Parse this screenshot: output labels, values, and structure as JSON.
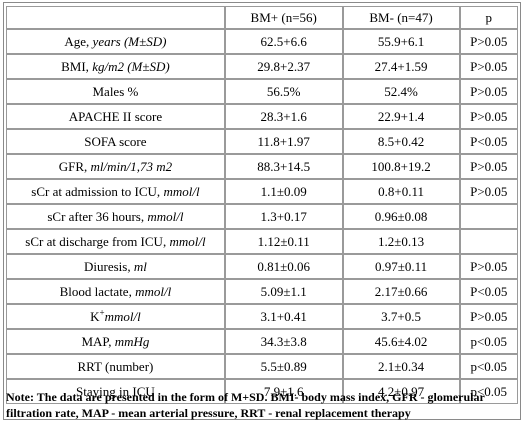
{
  "table": {
    "headers": [
      "",
      "BM+ (n=56)",
      "BM- (n=47)",
      "p"
    ],
    "rows": [
      {
        "label": "Age, ",
        "unit": "years (M±SD)",
        "bm_plus": "62.5+6.6",
        "bm_minus": "55.9+6.1",
        "p": "P>0.05"
      },
      {
        "label": "BMI, ",
        "unit": "kg/m2 (M±SD)",
        "bm_plus": "29.8+2.37",
        "bm_minus": "27.4+1.59",
        "p": "P>0.05"
      },
      {
        "label": "Males %",
        "unit": "",
        "bm_plus": "56.5%",
        "bm_minus": "52.4%",
        "p": "P>0.05"
      },
      {
        "label": "APACHE II score",
        "unit": "",
        "bm_plus": "28.3+1.6",
        "bm_minus": "22.9+1.4",
        "p": "P>0.05"
      },
      {
        "label": "SOFA score",
        "unit": "",
        "bm_plus": "11.8+1.97",
        "bm_minus": "8.5+0.42",
        "p": "P<0.05"
      },
      {
        "label": "GFR, ",
        "unit": "ml/min/1,73 m2",
        "bm_plus": "88.3+14.5",
        "bm_minus": "100.8+19.2",
        "p": "P>0.05"
      },
      {
        "label": "sCr at admission to ICU, ",
        "unit": "mmol/l",
        "bm_plus": "1.1±0.09",
        "bm_minus": "0.8+0.11",
        "p": "P>0.05"
      },
      {
        "label": "sCr after 36 hours, ",
        "unit": "mmol/l",
        "bm_plus": "1.3+0.17",
        "bm_minus": "0.96±0.08",
        "p": ""
      },
      {
        "label": "sCr at discharge from ICU, ",
        "unit": "mmol/l",
        "bm_plus": "1.12±0.11",
        "bm_minus": "1.2±0.13",
        "p": ""
      },
      {
        "label": "Diuresis, ",
        "unit": "ml",
        "bm_plus": "0.81±0.06",
        "bm_minus": "0.97±0.11",
        "p": "P>0.05"
      },
      {
        "label": "Blood lactate, ",
        "unit": "mmol/l",
        "bm_plus": "5.09±1.1",
        "bm_minus": "2.17±0.66",
        "p": "P<0.05"
      },
      {
        "label": "K",
        "sup": "+",
        "unit": "mmol/l",
        "bm_plus": "3.1+0.41",
        "bm_minus": "3.7+0.5",
        "p": "P>0.05"
      },
      {
        "label": "MAP, ",
        "unit": "mmHg",
        "bm_plus": "34.3±3.8",
        "bm_minus": "45.6±4.02",
        "p": "p<0.05"
      },
      {
        "label": "RRT (number)",
        "unit": "",
        "bm_plus": "5.5±0.89",
        "bm_minus": "2.1±0.34",
        "p": "p<0.05"
      },
      {
        "label": "Staying in ICU",
        "unit": "",
        "bm_plus": "7.9±1.6",
        "bm_minus": "4.2±0.97",
        "p": "p<0.05"
      }
    ]
  },
  "note": "Note: The data are presented in the form of M+SD. BMI- body mass index, GFR - glomerular filtration rate, MAP - mean arterial pressure, RRT - renal replacement therapy"
}
